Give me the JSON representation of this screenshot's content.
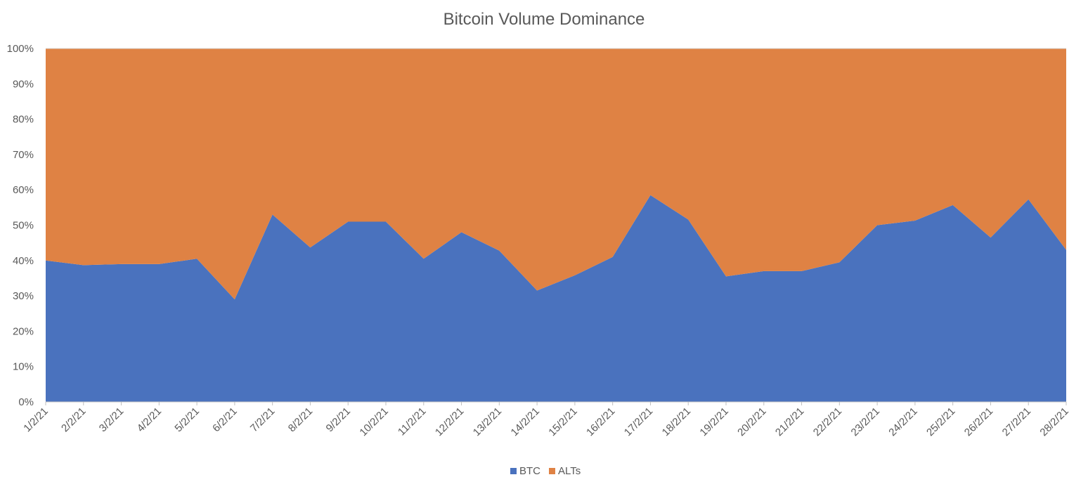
{
  "chart_data": {
    "type": "area",
    "stacked": "percent",
    "title": "Bitcoin Volume Dominance",
    "xlabel": "",
    "ylabel": "",
    "ylim": [
      0,
      100
    ],
    "y_ticks": [
      "0%",
      "10%",
      "20%",
      "30%",
      "40%",
      "50%",
      "60%",
      "70%",
      "80%",
      "90%",
      "100%"
    ],
    "categories": [
      "1/2/21",
      "2/2/21",
      "3/2/21",
      "4/2/21",
      "5/2/21",
      "6/2/21",
      "7/2/21",
      "8/2/21",
      "9/2/21",
      "10/2/21",
      "11/2/21",
      "12/2/21",
      "13/2/21",
      "14/2/21",
      "15/2/21",
      "16/2/21",
      "17/2/21",
      "18/2/21",
      "19/2/21",
      "20/2/21",
      "21/2/21",
      "22/2/21",
      "23/2/21",
      "24/2/21",
      "25/2/21",
      "26/2/21",
      "27/2/21",
      "28/2/21"
    ],
    "series": [
      {
        "name": "BTC",
        "color": "#4a72be",
        "values": [
          40,
          38.7,
          39,
          39,
          40.5,
          29,
          53,
          43.7,
          51,
          51,
          40.5,
          48,
          42.8,
          31.5,
          35.8,
          41,
          58.5,
          51.6,
          35.5,
          37,
          37,
          39.5,
          50,
          51.3,
          55.7,
          46.5,
          57.3,
          43
        ]
      },
      {
        "name": "ALTs",
        "color": "#df8244",
        "values": [
          60,
          61.3,
          61,
          61,
          59.5,
          71,
          47,
          56.3,
          49,
          49,
          59.5,
          52,
          57.2,
          68.5,
          64.2,
          59,
          41.5,
          48.4,
          64.5,
          63,
          63,
          60.5,
          50,
          48.7,
          44.3,
          53.5,
          42.7,
          57
        ]
      }
    ],
    "grid": true,
    "legend_position": "bottom"
  }
}
